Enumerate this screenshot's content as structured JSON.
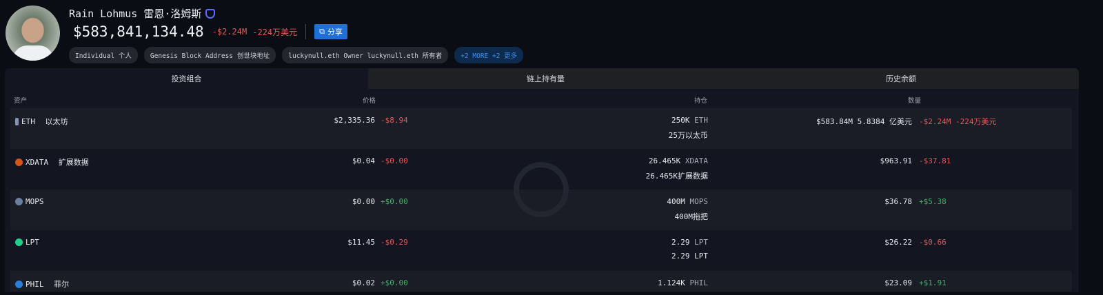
{
  "profile": {
    "name": "Rain Lohmus 雷恩·洛姆斯",
    "balance": "$583,841,134.48",
    "change_usd": "-$2.24M",
    "change_cn": "-224万美元",
    "share_label": "分享",
    "tags": [
      "Individual 个人",
      "Genesis Block Address 创世块地址",
      "luckynull.eth Owner luckynull.eth 所有者",
      "+2 MORE +2 更多"
    ]
  },
  "tabs": [
    "投资组合",
    "链上持有量",
    "历史余额"
  ],
  "columns": {
    "asset": "资产",
    "price": "价格",
    "holdings": "持仓",
    "value": "数量"
  },
  "colors": {
    "negative": "#e05a5a",
    "positive": "#4cae6e",
    "accent": "#1f6fd6"
  },
  "rows": [
    {
      "symbol": "ETH",
      "name": "以太坊",
      "icon": "eth-icon",
      "price": "$2,335.36",
      "price_change": "-$8.94",
      "holding": "250K",
      "holding_unit": "ETH",
      "holding_cn": "25万以太币",
      "value": "$583.84M 5.8384 亿美元",
      "value_change": "-$2.24M -224万美元"
    },
    {
      "symbol": "XDATA",
      "name": "扩展数据",
      "icon": "xdata-icon",
      "price": "$0.04",
      "price_change": "-$0.00",
      "holding": "26.465K",
      "holding_unit": "XDATA",
      "holding_cn": "26.465K扩展数据",
      "value": "$963.91",
      "value_change": "-$37.81"
    },
    {
      "symbol": "MOPS",
      "name": "",
      "icon": "mops-icon",
      "price": "$0.00",
      "price_change": "+$0.00",
      "holding": "400M",
      "holding_unit": "MOPS",
      "holding_cn": "400M拖把",
      "value": "$36.78",
      "value_change": "+$5.38"
    },
    {
      "symbol": "LPT",
      "name": "",
      "icon": "lpt-icon",
      "price": "$11.45",
      "price_change": "-$0.29",
      "holding": "2.29",
      "holding_unit": "LPT",
      "holding_cn": "2.29 LPT",
      "value": "$26.22",
      "value_change": "-$0.66"
    },
    {
      "symbol": "PHIL",
      "name": "菲尔",
      "icon": "phil-icon",
      "price": "$0.02",
      "price_change": "+$0.00",
      "holding": "1.124K",
      "holding_unit": "PHIL",
      "holding_cn": "",
      "value": "$23.09",
      "value_change": "+$1.91"
    }
  ]
}
